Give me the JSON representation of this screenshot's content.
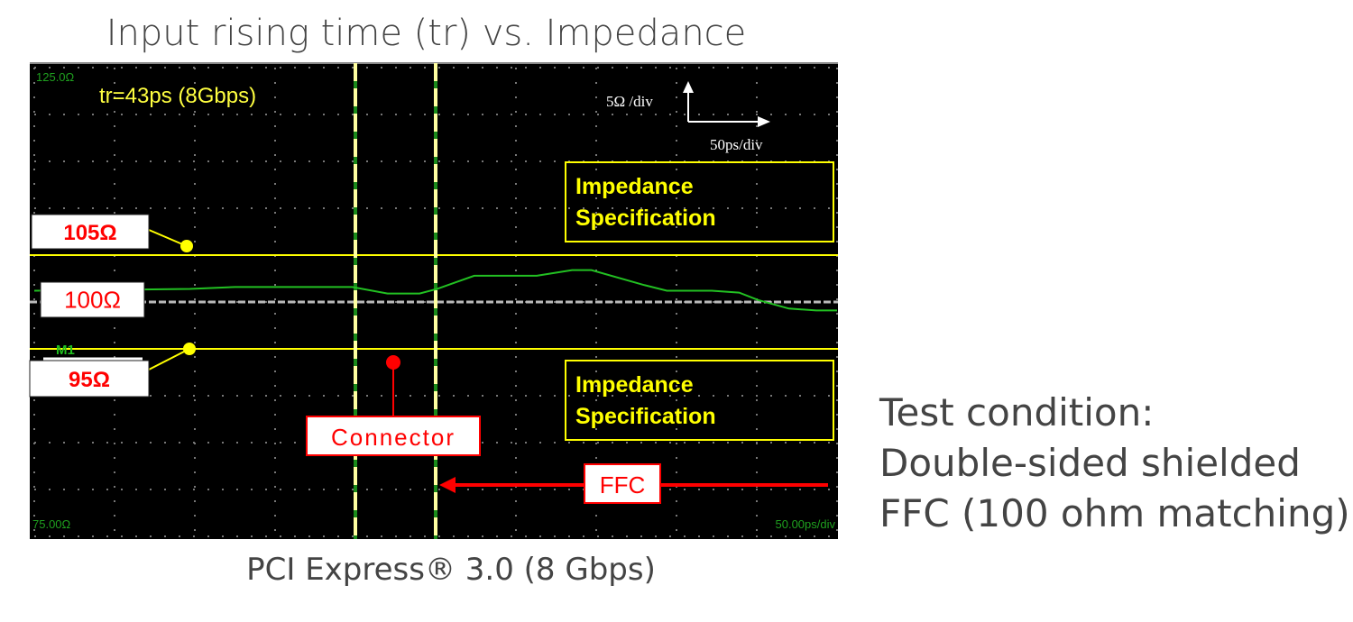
{
  "chart_data": {
    "type": "line",
    "title": "Input rising time (tr) vs. Impedance",
    "subtitle": "PCI Express® 3.0 (8 Gbps)",
    "xlabel": "",
    "ylabel": "",
    "x_unit": "ps",
    "y_unit": "Ω",
    "xlim": [
      0,
      500
    ],
    "ylim": [
      75,
      125
    ],
    "grid": true,
    "x_per_div": 50,
    "y_per_div": 5,
    "scale_labels": {
      "top": "125.0Ω",
      "bottom": "75.00Ω",
      "timebase": "50.00ps/div",
      "v_scale": "5Ω /div",
      "h_scale": "50ps/div"
    },
    "annotation_tr": "tr=43ps (8Gbps)",
    "series": [
      {
        "color": "#22c022",
        "x": [
          0,
          97,
          125,
          198,
          220,
          240,
          251,
          274,
          313,
          335,
          347,
          380,
          394,
          422,
          439,
          451,
          470,
          487,
          500
        ],
        "y": [
          101.2,
          101.4,
          101.6,
          101.6,
          100.9,
          100.9,
          101.4,
          102.8,
          102.8,
          103.4,
          103.4,
          101.8,
          101.2,
          101.2,
          101.0,
          100.2,
          99.3,
          99.1,
          99.1
        ]
      }
    ],
    "reference_lines": [
      {
        "value": 105,
        "label": "105Ω",
        "color": "#ffff00"
      },
      {
        "value": 100,
        "label": "100Ω",
        "color": "#bbbbbb"
      },
      {
        "value": 95,
        "label": "95Ω",
        "color": "#ffff00",
        "marker": "M1"
      }
    ],
    "cursors_ps": [
      200,
      250
    ],
    "spec_label": [
      "Impedance",
      "Specification"
    ],
    "connector_label": "Connector",
    "ffc_label": "FFC",
    "colors": {
      "background": "#000000",
      "trace": "#22c022",
      "spec": "#ffff00",
      "callout": "#ff0000"
    }
  },
  "test_condition": [
    "Test condition:",
    "Double-sided shielded",
    "FFC (100 ohm matching)"
  ]
}
